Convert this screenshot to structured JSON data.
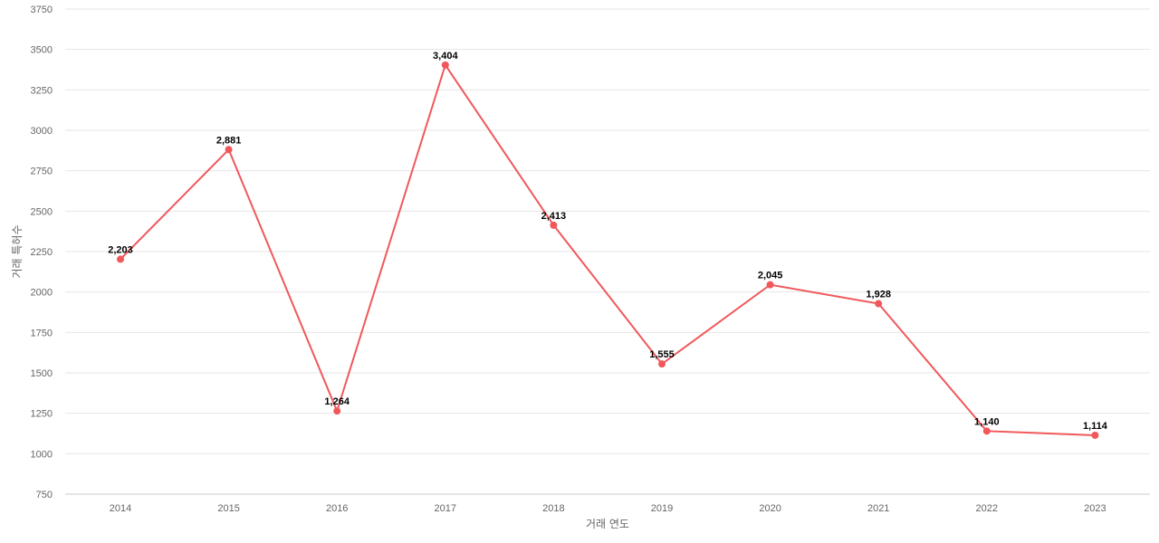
{
  "chart_data": {
    "type": "line",
    "title": "",
    "xlabel": "거래 연도",
    "ylabel": "거래 특허수",
    "categories": [
      "2014",
      "2015",
      "2016",
      "2017",
      "2018",
      "2019",
      "2020",
      "2021",
      "2022",
      "2023"
    ],
    "series": [
      {
        "values": [
          2203,
          2881,
          1264,
          3404,
          2413,
          1555,
          2045,
          1928,
          1140,
          1114
        ],
        "data_labels": [
          "2,203",
          "2,881",
          "1,264",
          "3,404",
          "2,413",
          "1,555",
          "2,045",
          "1,928",
          "1,140",
          "1,114"
        ],
        "color": "#f0585b"
      }
    ],
    "ylim": [
      750,
      3750
    ],
    "yticks": [
      750,
      1000,
      1250,
      1500,
      1750,
      2000,
      2250,
      2500,
      2750,
      3000,
      3250,
      3500,
      3750
    ],
    "grid": true,
    "legend": "none"
  }
}
